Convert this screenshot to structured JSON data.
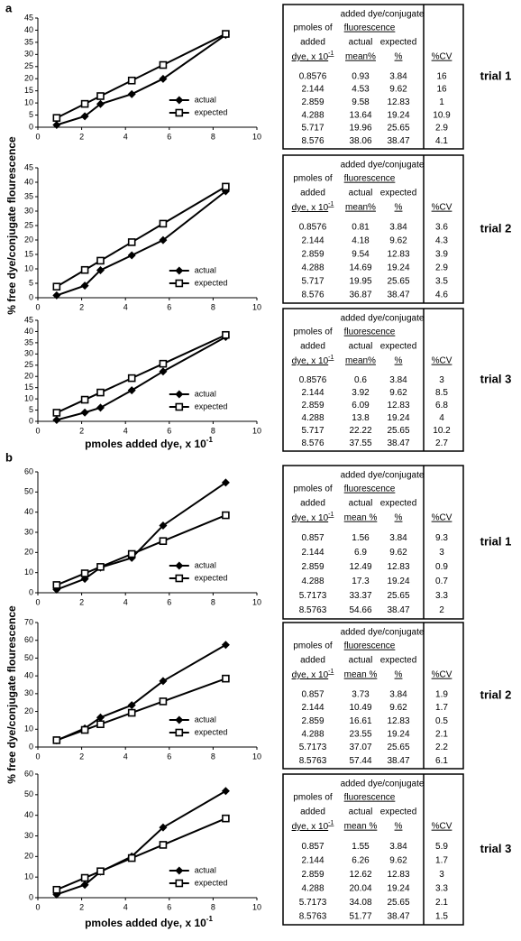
{
  "panels": [
    {
      "label": "a",
      "ylabel": "% free dye/conjugate flourescence",
      "xlabel": "pmoles added dye, x 10",
      "xlabel_exp": "-1"
    },
    {
      "label": "b",
      "ylabel": "% free dye/conjugate flourescence",
      "xlabel": "pmoles added dye, x 10",
      "xlabel_exp": "-1"
    }
  ],
  "chart_data": [
    {
      "type": "line",
      "x": [
        0.8576,
        2.144,
        2.859,
        4.288,
        5.717,
        8.576
      ],
      "xlim": [
        0,
        10
      ],
      "xticks": [
        0,
        2,
        4,
        6,
        8,
        10
      ],
      "ylim": [
        0,
        45
      ],
      "yticks": [
        0,
        5,
        10,
        15,
        20,
        25,
        30,
        35,
        40,
        45
      ],
      "legend": "lower right",
      "series": [
        {
          "name": "actual",
          "color": "#000000",
          "marker": "diamond",
          "values": [
            0.93,
            4.53,
            9.58,
            13.64,
            19.96,
            38.06
          ]
        },
        {
          "name": "expected",
          "color": "#000000",
          "marker": "square",
          "values": [
            3.84,
            9.62,
            12.83,
            19.24,
            25.65,
            38.47
          ]
        }
      ]
    },
    {
      "type": "line",
      "x": [
        0.8576,
        2.144,
        2.859,
        4.288,
        5.717,
        8.576
      ],
      "xlim": [
        0,
        10
      ],
      "xticks": [
        0,
        2,
        4,
        6,
        8,
        10
      ],
      "ylim": [
        0,
        45
      ],
      "yticks": [
        0,
        5,
        10,
        15,
        20,
        25,
        30,
        35,
        40,
        45
      ],
      "legend": "lower right",
      "series": [
        {
          "name": "actual",
          "color": "#000000",
          "marker": "diamond",
          "values": [
            0.81,
            4.18,
            9.54,
            14.69,
            19.95,
            36.87
          ]
        },
        {
          "name": "expected",
          "color": "#000000",
          "marker": "square",
          "values": [
            3.84,
            9.62,
            12.83,
            19.24,
            25.65,
            38.47
          ]
        }
      ]
    },
    {
      "type": "line",
      "x": [
        0.8576,
        2.144,
        2.859,
        4.288,
        5.717,
        8.576
      ],
      "xlim": [
        0,
        10
      ],
      "xticks": [
        0,
        2,
        4,
        6,
        8,
        10
      ],
      "ylim": [
        0,
        45
      ],
      "yticks": [
        0,
        5,
        10,
        15,
        20,
        25,
        30,
        35,
        40,
        45
      ],
      "legend": "lower right",
      "series": [
        {
          "name": "actual",
          "color": "#000000",
          "marker": "diamond",
          "values": [
            0.6,
            3.92,
            6.09,
            13.8,
            22.22,
            37.55
          ]
        },
        {
          "name": "expected",
          "color": "#000000",
          "marker": "square",
          "values": [
            3.84,
            9.62,
            12.83,
            19.24,
            25.65,
            38.47
          ]
        }
      ]
    },
    {
      "type": "line",
      "x": [
        0.857,
        2.144,
        2.859,
        4.288,
        5.7173,
        8.5763
      ],
      "xlim": [
        0,
        10
      ],
      "xticks": [
        0,
        2,
        4,
        6,
        8,
        10
      ],
      "ylim": [
        0,
        60
      ],
      "yticks": [
        0,
        10,
        20,
        30,
        40,
        50,
        60
      ],
      "legend": "lower right",
      "series": [
        {
          "name": "actual",
          "color": "#000000",
          "marker": "diamond",
          "values": [
            1.56,
            6.9,
            12.49,
            17.3,
            33.37,
            54.66
          ]
        },
        {
          "name": "expected",
          "color": "#000000",
          "marker": "square",
          "values": [
            3.84,
            9.62,
            12.83,
            19.24,
            25.65,
            38.47
          ]
        }
      ]
    },
    {
      "type": "line",
      "x": [
        0.857,
        2.144,
        2.859,
        4.288,
        5.7173,
        8.5763
      ],
      "xlim": [
        0,
        10
      ],
      "xticks": [
        0,
        2,
        4,
        6,
        8,
        10
      ],
      "ylim": [
        0,
        70
      ],
      "yticks": [
        0,
        10,
        20,
        30,
        40,
        50,
        60,
        70
      ],
      "legend": "lower right",
      "series": [
        {
          "name": "actual",
          "color": "#000000",
          "marker": "diamond",
          "values": [
            3.73,
            10.49,
            16.61,
            23.55,
            37.07,
            57.44
          ]
        },
        {
          "name": "expected",
          "color": "#000000",
          "marker": "square",
          "values": [
            3.84,
            9.62,
            12.83,
            19.24,
            25.65,
            38.47
          ]
        }
      ]
    },
    {
      "type": "line",
      "x": [
        0.857,
        2.144,
        2.859,
        4.288,
        5.7173,
        8.5763
      ],
      "xlim": [
        0,
        10
      ],
      "xticks": [
        0,
        2,
        4,
        6,
        8,
        10
      ],
      "ylim": [
        0,
        60
      ],
      "yticks": [
        0,
        10,
        20,
        30,
        40,
        50,
        60
      ],
      "legend": "lower right",
      "series": [
        {
          "name": "actual",
          "color": "#000000",
          "marker": "diamond",
          "values": [
            1.55,
            6.26,
            12.62,
            20.04,
            34.08,
            51.77
          ]
        },
        {
          "name": "expected",
          "color": "#000000",
          "marker": "square",
          "values": [
            3.84,
            9.62,
            12.83,
            19.24,
            25.65,
            38.47
          ]
        }
      ]
    }
  ],
  "tables": [
    {
      "trial": "trial 1",
      "header": {
        "group": "added dye/conjugate",
        "subgroup": "fluorescence",
        "col1": [
          "pmoles of",
          "added",
          "dye, x 10"
        ],
        "col1_exp": "-1",
        "col2": [
          "actual",
          "mean%"
        ],
        "col3": [
          "expected",
          "%"
        ],
        "col4": "%CV"
      },
      "rows": [
        [
          "0.8576",
          "0.93",
          "3.84",
          "16"
        ],
        [
          "2.144",
          "4.53",
          "9.62",
          "16"
        ],
        [
          "2.859",
          "9.58",
          "12.83",
          "1"
        ],
        [
          "4.288",
          "13.64",
          "19.24",
          "10.9"
        ],
        [
          "5.717",
          "19.96",
          "25.65",
          "2.9"
        ],
        [
          "8.576",
          "38.06",
          "38.47",
          "4.1"
        ]
      ]
    },
    {
      "trial": "trial 2",
      "header": {
        "group": "added dye/conjugate",
        "subgroup": "fluorescence",
        "col1": [
          "pmoles of",
          "added",
          "dye, x 10"
        ],
        "col1_exp": "-1",
        "col2": [
          "actual",
          "mean%"
        ],
        "col3": [
          "expected",
          "%"
        ],
        "col4": "%CV"
      },
      "rows": [
        [
          "0.8576",
          "0.81",
          "3.84",
          "3.6"
        ],
        [
          "2.144",
          "4.18",
          "9.62",
          "4.3"
        ],
        [
          "2.859",
          "9.54",
          "12.83",
          "3.9"
        ],
        [
          "4.288",
          "14.69",
          "19.24",
          "2.9"
        ],
        [
          "5.717",
          "19.95",
          "25.65",
          "3.5"
        ],
        [
          "8.576",
          "36.87",
          "38.47",
          "4.6"
        ]
      ]
    },
    {
      "trial": "trial 3",
      "header": {
        "group": "added dye/conjugate",
        "subgroup": "fluorescence",
        "col1": [
          "pmoles of",
          "added",
          "dye, x 10"
        ],
        "col1_exp": "-1",
        "col2": [
          "actual",
          "mean%"
        ],
        "col3": [
          "expected",
          "%"
        ],
        "col4": "%CV"
      },
      "rows": [
        [
          "0.8576",
          "0.6",
          "3.84",
          "3"
        ],
        [
          "2.144",
          "3.92",
          "9.62",
          "8.5"
        ],
        [
          "2.859",
          "6.09",
          "12.83",
          "6.8"
        ],
        [
          "4.288",
          "13.8",
          "19.24",
          "4"
        ],
        [
          "5.717",
          "22.22",
          "25.65",
          "10.2"
        ],
        [
          "8.576",
          "37.55",
          "38.47",
          "2.7"
        ]
      ]
    },
    {
      "trial": "trial 1",
      "header": {
        "group": "added dye/conjugate",
        "subgroup": "fluorescence",
        "col1": [
          "pmoles of",
          "added",
          "dye, x 10"
        ],
        "col1_exp": "-1",
        "col2": [
          "actual",
          "mean %"
        ],
        "col3": [
          "expected",
          "%"
        ],
        "col4": "%CV"
      },
      "rows": [
        [
          "0.857",
          "1.56",
          "3.84",
          "9.3"
        ],
        [
          "2.144",
          "6.9",
          "9.62",
          "3"
        ],
        [
          "2.859",
          "12.49",
          "12.83",
          "0.9"
        ],
        [
          "4.288",
          "17.3",
          "19.24",
          "0.7"
        ],
        [
          "5.7173",
          "33.37",
          "25.65",
          "3.3"
        ],
        [
          "8.5763",
          "54.66",
          "38.47",
          "2"
        ]
      ]
    },
    {
      "trial": "trial 2",
      "header": {
        "group": "added dye/conjugate",
        "subgroup": "fluorescence",
        "col1": [
          "pmoles of",
          "added",
          "dye, x 10"
        ],
        "col1_exp": "-1",
        "col2": [
          "actual",
          "mean %"
        ],
        "col3": [
          "expected",
          "%"
        ],
        "col4": "%CV"
      },
      "rows": [
        [
          "0.857",
          "3.73",
          "3.84",
          "1.9"
        ],
        [
          "2.144",
          "10.49",
          "9.62",
          "1.7"
        ],
        [
          "2.859",
          "16.61",
          "12.83",
          "0.5"
        ],
        [
          "4.288",
          "23.55",
          "19.24",
          "2.1"
        ],
        [
          "5.7173",
          "37.07",
          "25.65",
          "2.2"
        ],
        [
          "8.5763",
          "57.44",
          "38.47",
          "6.1"
        ]
      ]
    },
    {
      "trial": "trial 3",
      "header": {
        "group": "added dye/conjugate",
        "subgroup": "fluorescence",
        "col1": [
          "pmoles of",
          "added",
          "dye, x 10"
        ],
        "col1_exp": "-1",
        "col2": [
          "actual",
          "mean %"
        ],
        "col3": [
          "expected",
          "%"
        ],
        "col4": "%CV"
      },
      "rows": [
        [
          "0.857",
          "1.55",
          "3.84",
          "5.9"
        ],
        [
          "2.144",
          "6.26",
          "9.62",
          "1.7"
        ],
        [
          "2.859",
          "12.62",
          "12.83",
          "3"
        ],
        [
          "4.288",
          "20.04",
          "19.24",
          "3.3"
        ],
        [
          "5.7173",
          "34.08",
          "25.65",
          "2.1"
        ],
        [
          "8.5763",
          "51.77",
          "38.47",
          "1.5"
        ]
      ]
    }
  ]
}
